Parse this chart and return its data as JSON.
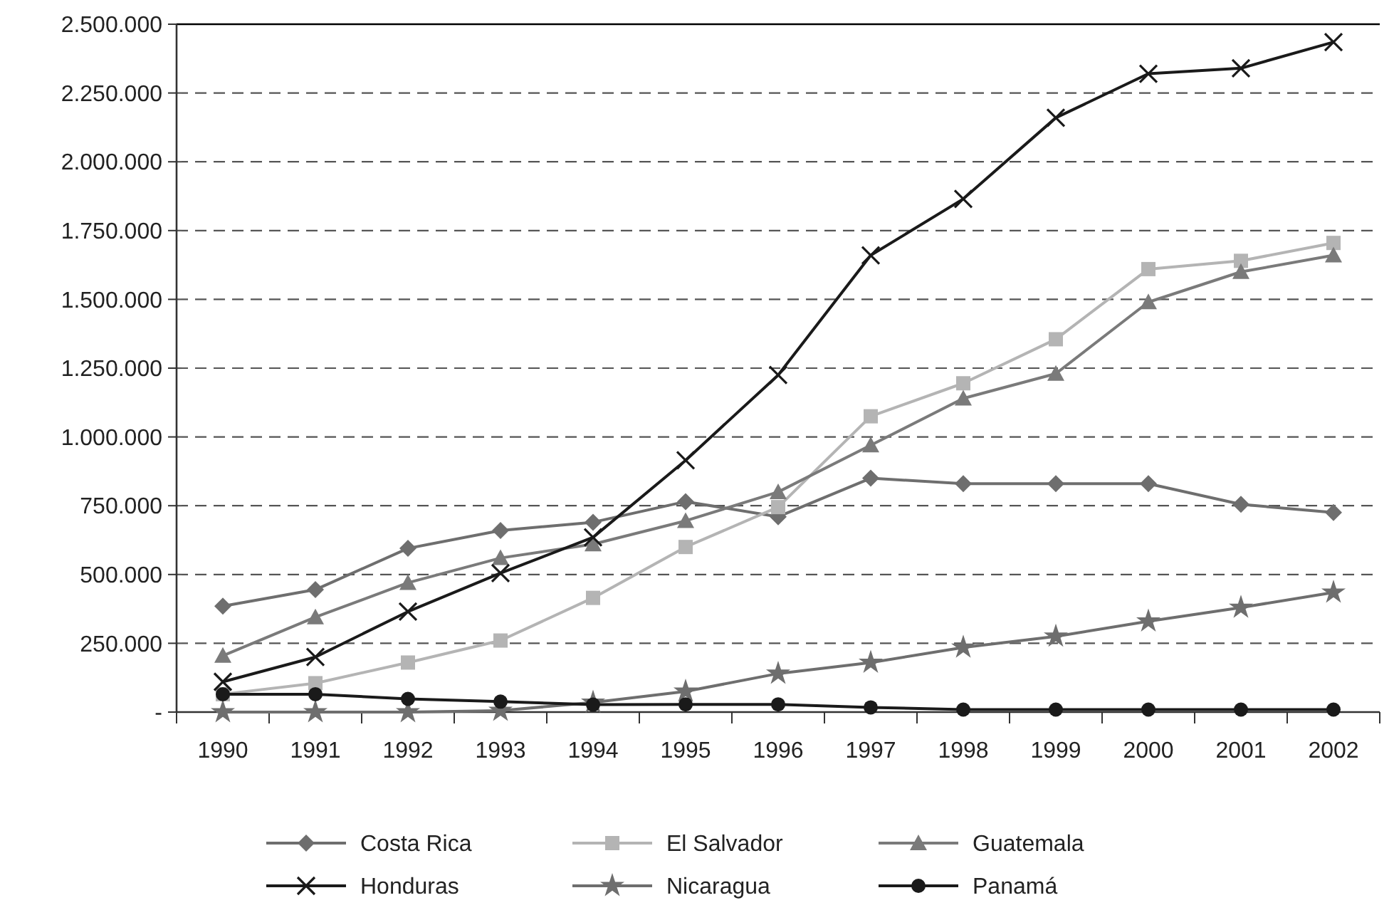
{
  "chart_data": {
    "type": "line",
    "categories": [
      "1990",
      "1991",
      "1992",
      "1993",
      "1994",
      "1995",
      "1996",
      "1997",
      "1998",
      "1999",
      "2000",
      "2001",
      "2002"
    ],
    "ylim": [
      0,
      2500000
    ],
    "yticks": [
      {
        "value": 0,
        "label": "-"
      },
      {
        "value": 250000,
        "label": "250.000"
      },
      {
        "value": 500000,
        "label": "500.000"
      },
      {
        "value": 750000,
        "label": "750.000"
      },
      {
        "value": 1000000,
        "label": "1.000.000"
      },
      {
        "value": 1250000,
        "label": "1.250.000"
      },
      {
        "value": 1500000,
        "label": "1.500.000"
      },
      {
        "value": 1750000,
        "label": "1.750.000"
      },
      {
        "value": 2000000,
        "label": "2.000.000"
      },
      {
        "value": 2250000,
        "label": "2.250.000"
      },
      {
        "value": 2500000,
        "label": "2.500.000"
      }
    ],
    "grid": "y",
    "legend": "bottom",
    "line_style": "solid",
    "series": [
      {
        "name": "Costa Rica",
        "color": "#6e6e6e",
        "marker": "diamond",
        "values": [
          385000,
          445000,
          595000,
          660000,
          690000,
          765000,
          710000,
          850000,
          830000,
          830000,
          830000,
          755000,
          725000
        ]
      },
      {
        "name": "El Salvador",
        "color": "#b4b4b4",
        "marker": "square",
        "values": [
          65000,
          105000,
          180000,
          260000,
          415000,
          600000,
          745000,
          1075000,
          1195000,
          1355000,
          1610000,
          1640000,
          1705000
        ]
      },
      {
        "name": "Guatemala",
        "color": "#7a7a7a",
        "marker": "triangle",
        "values": [
          205000,
          345000,
          470000,
          560000,
          610000,
          695000,
          800000,
          970000,
          1140000,
          1230000,
          1490000,
          1600000,
          1660000
        ]
      },
      {
        "name": "Honduras",
        "color": "#1a1a1a",
        "marker": "cross",
        "values": [
          110000,
          200000,
          365000,
          505000,
          635000,
          915000,
          1225000,
          1660000,
          1865000,
          2160000,
          2320000,
          2340000,
          2435000
        ]
      },
      {
        "name": "Nicaragua",
        "color": "#6e6e6e",
        "marker": "star",
        "values": [
          0,
          0,
          0,
          5000,
          35000,
          75000,
          140000,
          180000,
          235000,
          275000,
          330000,
          380000,
          435000
        ]
      },
      {
        "name": "Panamá",
        "color": "#1a1a1a",
        "marker": "circle",
        "values": [
          65000,
          65000,
          48000,
          38000,
          27000,
          28000,
          28000,
          17000,
          9000,
          9000,
          9000,
          9000,
          9000
        ]
      }
    ]
  }
}
